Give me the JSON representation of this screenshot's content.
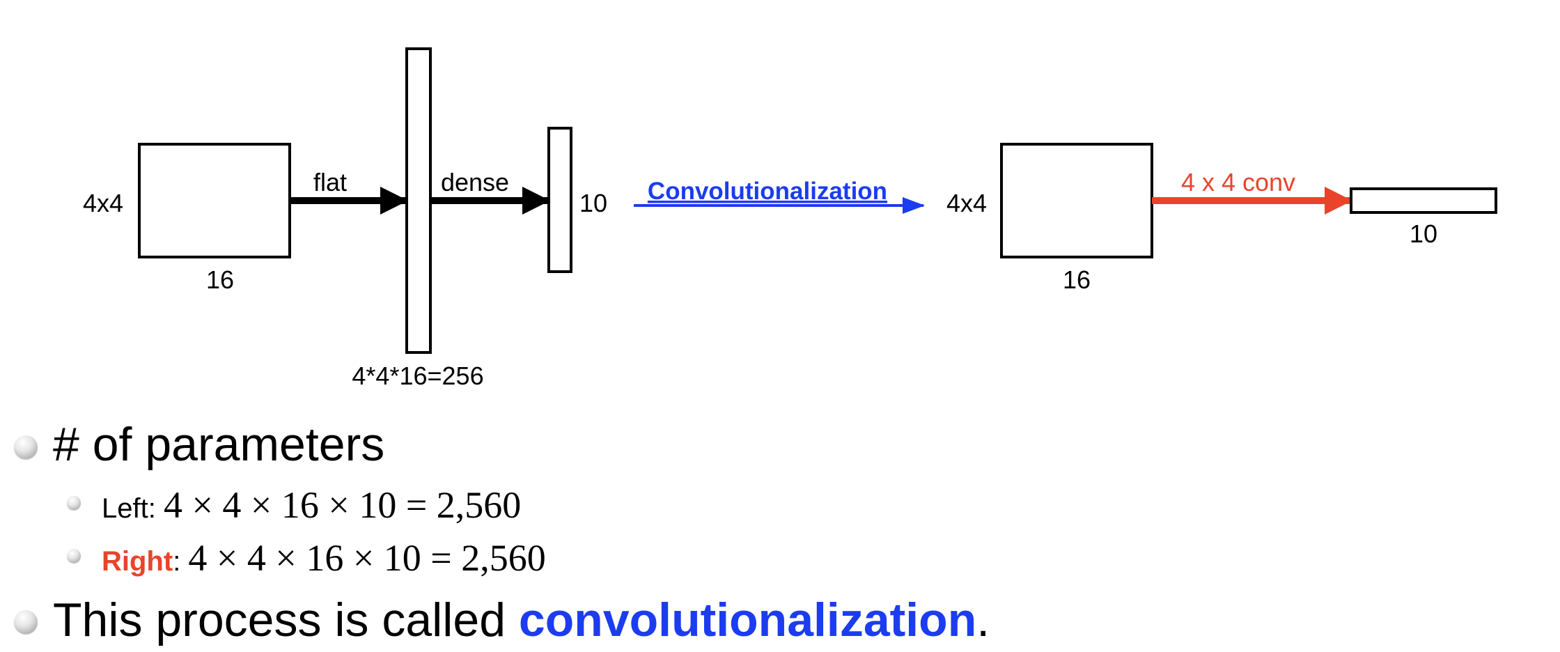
{
  "diagram": {
    "left": {
      "input_side_label": "4x4",
      "input_bottom_label": "16",
      "flat_label": "flat",
      "flat_vector_label": "4*4*16=256",
      "dense_label": "dense",
      "output_label": "10"
    },
    "transform_label": "Convolutionalization",
    "right": {
      "input_side_label": "4x4",
      "input_bottom_label": "16",
      "conv_label": "4 x 4 conv",
      "output_label": "10"
    },
    "colors": {
      "blue": "#1c3cf0",
      "red": "#e9442b",
      "black": "#000000"
    }
  },
  "bullets": {
    "params_heading": "# of parameters",
    "left_label": "Left",
    "left_formula": "4 × 4 × 16 × 10 = 2,560",
    "right_label": "Right",
    "right_formula": "4 × 4 × 16 × 10 = 2,560",
    "separator": ": ",
    "summary_prefix": "This process is called ",
    "summary_term": "convolutionalization",
    "summary_suffix": "."
  }
}
